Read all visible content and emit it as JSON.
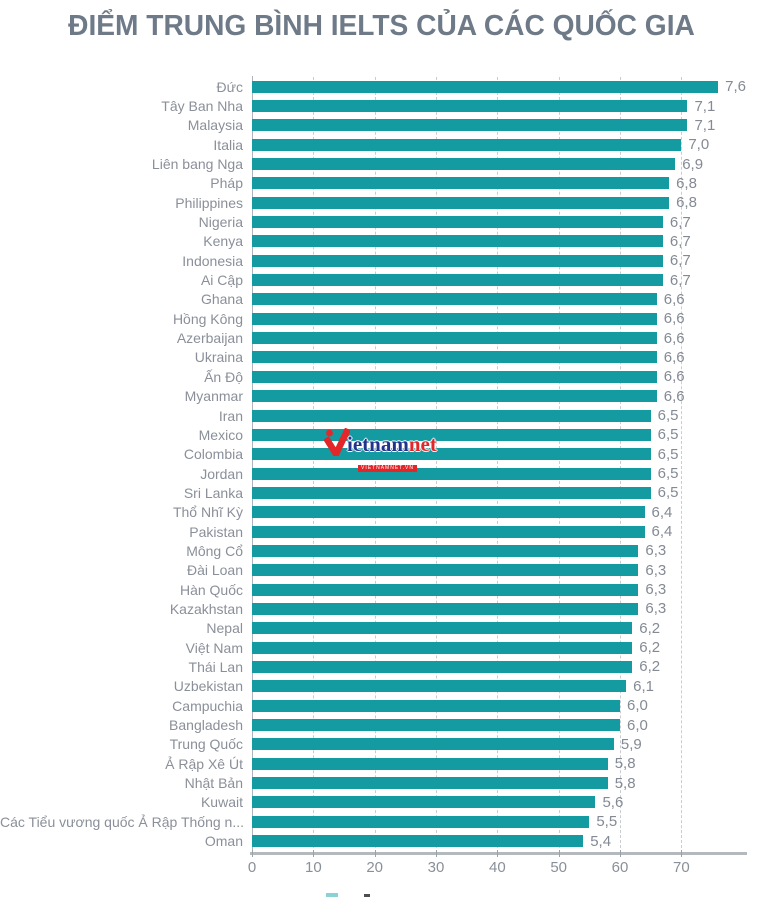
{
  "title": "ĐIỂM TRUNG BÌNH IELTS CỦA CÁC QUỐC GIA",
  "watermark": {
    "icon": "vietnamnet-v-check-icon",
    "text_main": "ietnam",
    "text_suffix": "net",
    "text_sub": "VIETNAMNET.VN"
  },
  "colors": {
    "bar": "#149aa1",
    "category_label": "#8a8f99",
    "value_label": "#848a94",
    "title": "#6e7a88",
    "axis": "#b4b9be",
    "gridline": "#c9cdd2",
    "legend_swatch": "#8ad2d5"
  },
  "chart_data": {
    "type": "bar",
    "orientation": "horizontal",
    "title": "ĐIỂM TRUNG BÌNH IELTS CỦA CÁC QUỐC GIA",
    "categories": [
      "Đức",
      "Tây Ban Nha",
      "Malaysia",
      "Italia",
      "Liên bang Nga",
      "Pháp",
      "Philippines",
      "Nigeria",
      "Kenya",
      "Indonesia",
      "Ai Cập",
      "Ghana",
      "Hồng Kông",
      "Azerbaijan",
      "Ukraina",
      "Ấn Độ",
      "Myanmar",
      "Iran",
      "Mexico",
      "Colombia",
      "Jordan",
      "Sri Lanka",
      "Thổ Nhĩ Kỳ",
      "Pakistan",
      "Mông Cổ",
      "Đài Loan",
      "Hàn Quốc",
      "Kazakhstan",
      "Nepal",
      "Việt Nam",
      "Thái Lan",
      "Uzbekistan",
      "Campuchia",
      "Bangladesh",
      "Trung Quốc",
      "Ả Rập Xê Út",
      "Nhật Bản",
      "Kuwait",
      "Các Tiểu vương quốc Ả Rập Thống n...",
      "Oman"
    ],
    "values": [
      7.6,
      7.1,
      7.1,
      7.0,
      6.9,
      6.8,
      6.8,
      6.7,
      6.7,
      6.7,
      6.7,
      6.6,
      6.6,
      6.6,
      6.6,
      6.6,
      6.6,
      6.5,
      6.5,
      6.5,
      6.5,
      6.5,
      6.4,
      6.4,
      6.3,
      6.3,
      6.3,
      6.3,
      6.2,
      6.2,
      6.2,
      6.1,
      6.0,
      6.0,
      5.9,
      5.8,
      5.8,
      5.6,
      5.5,
      5.4
    ],
    "value_labels": [
      "7,6",
      "7,1",
      "7,1",
      "7,0",
      "6,9",
      "6,8",
      "6,8",
      "6,7",
      "6,7",
      "6,7",
      "6,7",
      "6,6",
      "6,6",
      "6,6",
      "6,6",
      "6,6",
      "6,6",
      "6,5",
      "6,5",
      "6,5",
      "6,5",
      "6,5",
      "6,4",
      "6,4",
      "6,3",
      "6,3",
      "6,3",
      "6,3",
      "6,2",
      "6,2",
      "6,2",
      "6,1",
      "6,0",
      "6,0",
      "5,9",
      "5,8",
      "5,8",
      "5,6",
      "5,5",
      "5,4"
    ],
    "x_ticks": [
      0,
      10,
      20,
      30,
      40,
      50,
      60,
      70
    ],
    "xlim": [
      0,
      81
    ],
    "xlabel": "",
    "ylabel": "",
    "grid": "vertical-dashed",
    "legend_position": "bottom-clipped",
    "bar_axis_note": "bars plotted as score × 10 against the 0–70 tick axis"
  }
}
